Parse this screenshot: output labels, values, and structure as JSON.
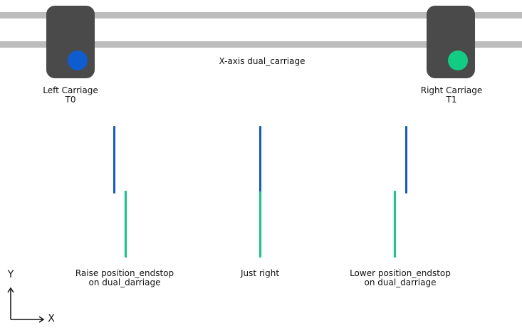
{
  "title": "X-axis dual_carriage",
  "colors": {
    "rail": "#bdbdbd",
    "carriage_body": "#4a4a4a",
    "t0": "#0f5bd0",
    "t1": "#12cc84"
  },
  "carriages": [
    {
      "name": "Left Carriage",
      "tool": "T0",
      "nozzle_color": "t0"
    },
    {
      "name": "Right Carriage",
      "tool": "T1",
      "nozzle_color": "t1"
    }
  ],
  "cases": [
    {
      "line1": "Raise position_endstop",
      "line2": "on dual_darriage"
    },
    {
      "line1": "Just right",
      "line2": ""
    },
    {
      "line1": "Lower position_endstop",
      "line2": "on dual_darriage"
    }
  ],
  "axes": {
    "x": "X",
    "y": "Y"
  }
}
